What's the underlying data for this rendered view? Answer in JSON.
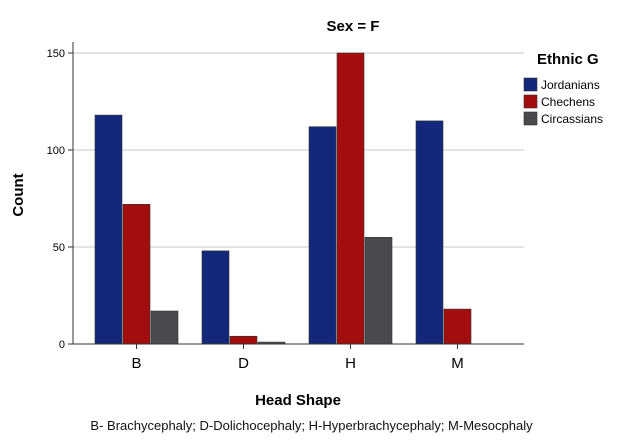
{
  "chart_data": {
    "type": "bar",
    "title": "Sex = F",
    "xlabel": "Head Shape",
    "ylabel": "Count",
    "categories": [
      "B",
      "D",
      "H",
      "M"
    ],
    "ylim": [
      0,
      160
    ],
    "yticks": [
      0,
      50,
      100,
      150
    ],
    "grid": true,
    "legend_title": "Ethnic G",
    "legend_position": "right",
    "series": [
      {
        "name": "Jordanians",
        "color": "#13287a",
        "values": [
          118,
          48,
          112,
          115
        ]
      },
      {
        "name": "Chechens",
        "color": "#a40d0e",
        "values": [
          72,
          4,
          150,
          18
        ]
      },
      {
        "name": "Circassians",
        "color": "#4a4a4d",
        "values": [
          17,
          1,
          55,
          0
        ]
      }
    ]
  },
  "footnote": "B- Brachycephaly; D-Dolichocephaly; H-Hyperbrachycephaly; M-Mesocphaly"
}
